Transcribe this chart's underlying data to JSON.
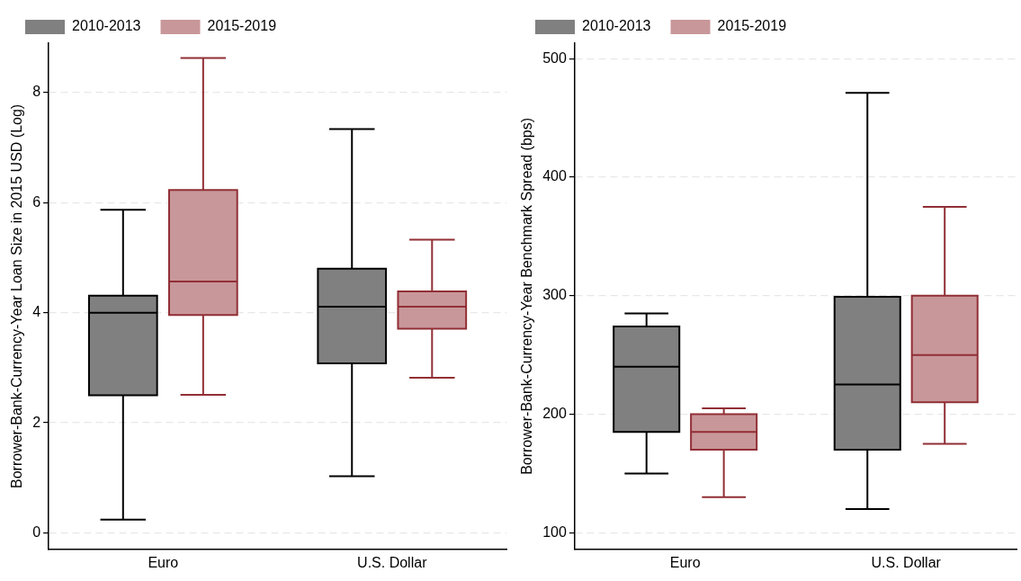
{
  "chart_data": [
    {
      "type": "box",
      "ylabel": "Borrower-Bank-Currency-Year Loan Size in 2015 USD (Log)",
      "categories": [
        "Euro",
        "U.S. Dollar"
      ],
      "ylim": [
        -0.3,
        8.9
      ],
      "yticks": [
        0,
        2,
        4,
        6,
        8
      ],
      "grid": "y",
      "legend": "top",
      "series": [
        {
          "name": "2010-2013",
          "color": "#808080",
          "boxes": [
            {
              "low": 0.24,
              "q1": 2.5,
              "median": 4.0,
              "q3": 4.31,
              "high": 5.87
            },
            {
              "low": 1.03,
              "q1": 3.08,
              "median": 4.11,
              "q3": 4.8,
              "high": 7.34
            }
          ]
        },
        {
          "name": "2015-2019",
          "color": "#c8979a",
          "boxes": [
            {
              "low": 2.51,
              "q1": 3.96,
              "median": 4.57,
              "q3": 6.23,
              "high": 8.63
            },
            {
              "low": 2.82,
              "q1": 3.71,
              "median": 4.11,
              "q3": 4.39,
              "high": 5.33
            }
          ]
        }
      ]
    },
    {
      "type": "box",
      "ylabel": "Borrower-Bank-Currency-Year Benchmark Spread (bps)",
      "categories": [
        "Euro",
        "U.S. Dollar"
      ],
      "ylim": [
        86,
        513
      ],
      "yticks": [
        100,
        200,
        300,
        400,
        500
      ],
      "grid": "y",
      "legend": "top",
      "series": [
        {
          "name": "2010-2013",
          "color": "#808080",
          "boxes": [
            {
              "low": 150,
              "q1": 185,
              "median": 240,
              "q3": 274,
              "high": 285
            },
            {
              "low": 120,
              "q1": 170,
              "median": 225,
              "q3": 299,
              "high": 471
            }
          ]
        },
        {
          "name": "2015-2019",
          "color": "#c8979a",
          "boxes": [
            {
              "low": 130,
              "q1": 170,
              "median": 185,
              "q3": 200,
              "high": 205
            },
            {
              "low": 175,
              "q1": 210,
              "median": 250,
              "q3": 300,
              "high": 375
            }
          ]
        }
      ]
    }
  ]
}
